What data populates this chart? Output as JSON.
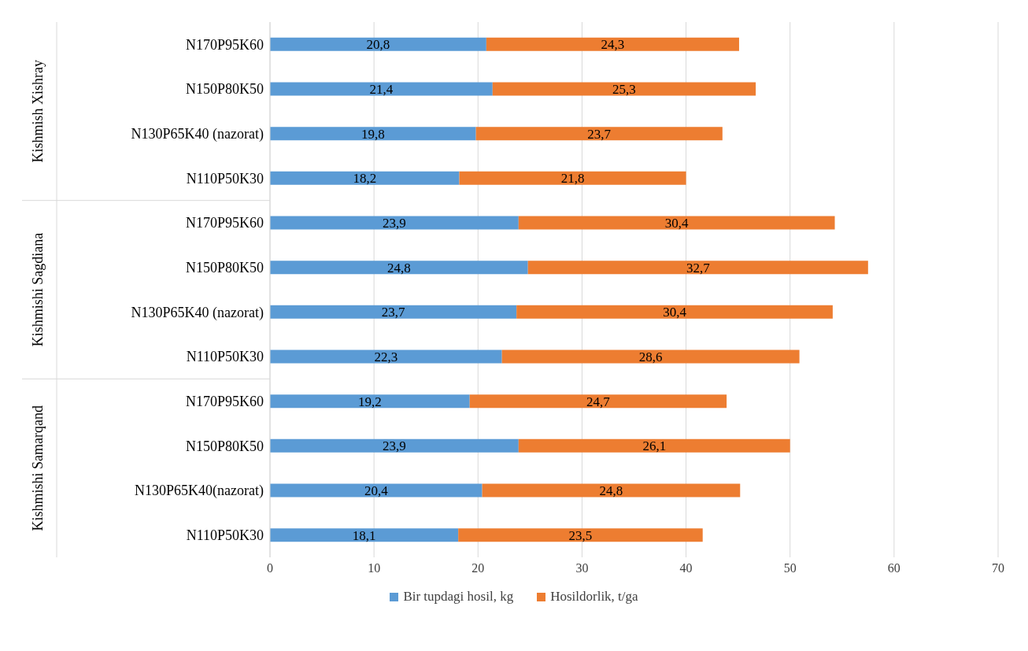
{
  "chart_data": {
    "type": "bar",
    "orientation": "horizontal",
    "stacked": true,
    "categories": [
      "N170P95K60",
      "N150P80K50",
      "N130P65K40 (nazorat)",
      "N110P50K30",
      "N170P95K60",
      "N150P80K50",
      "N130P65K40 (nazorat)",
      "N110P50K30",
      "N170P95K60",
      "N150P80K50",
      "N130P65K40(nazorat)",
      "N110P50K30"
    ],
    "series": [
      {
        "name": "Bir tupdagi hosil, kg",
        "color": "#5b9bd5",
        "values": [
          20.8,
          21.4,
          19.8,
          18.2,
          23.9,
          24.8,
          23.7,
          22.3,
          19.2,
          23.9,
          20.4,
          18.1
        ],
        "value_labels": [
          "20,8",
          "21,4",
          "19,8",
          "18,2",
          "23,9",
          "24,8",
          "23,7",
          "22,3",
          "19,2",
          "23,9",
          "20,4",
          "18,1"
        ]
      },
      {
        "name": "Hosildorlik, t/ga",
        "color": "#ed7d31",
        "values": [
          24.3,
          25.3,
          23.7,
          21.8,
          30.4,
          32.7,
          30.4,
          28.6,
          24.7,
          26.1,
          24.8,
          23.5
        ],
        "value_labels": [
          "24,3",
          "25,3",
          "23,7",
          "21,8",
          "30,4",
          "32,7",
          "30,4",
          "28,6",
          "24,7",
          "26,1",
          "24,8",
          "23,5"
        ]
      }
    ],
    "annotations": [
      "Kishmish Xishray",
      "Kishmishi Sagdiana",
      "Kishmishi Samarqand"
    ],
    "xlim": [
      0,
      70
    ],
    "xticks": [
      0,
      10,
      20,
      30,
      40,
      50,
      60,
      70
    ],
    "grid": "x",
    "legend": "bottom"
  }
}
